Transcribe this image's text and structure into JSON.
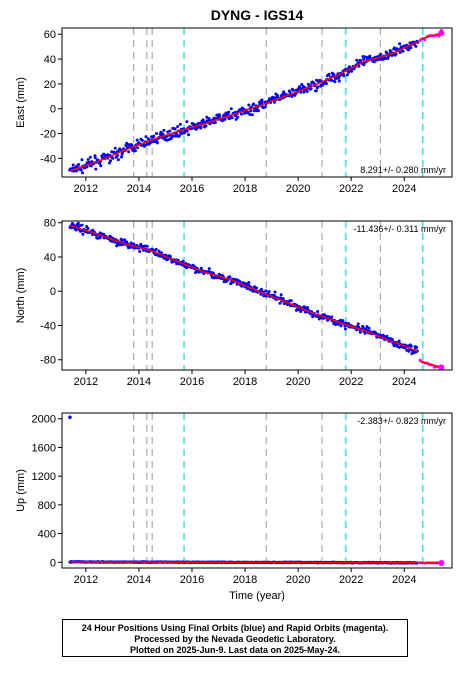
{
  "title": "DYNG - IGS14",
  "footer": {
    "line1": "24 Hour Positions Using Final Orbits (blue) and Rapid Orbits (magenta).",
    "line2": "Processed by the Nevada Geodetic Laboratory.",
    "line3": "Plotted on 2025-Jun-9. Last data on 2025-May-24."
  },
  "colors": {
    "final_points": "#0000ff",
    "rapid_points": "#ff00ff",
    "model_line": "#ff0000",
    "equipment_change": "#aaaaaa",
    "earthquake": "#00e5e5"
  },
  "chart_data": [
    {
      "type": "scatter",
      "ylabel": "East (mm)",
      "xlabel": "",
      "xlim": [
        2011.1,
        2025.8
      ],
      "ylim": [
        -55,
        65
      ],
      "yticks": [
        -40,
        -20,
        0,
        20,
        40,
        60
      ],
      "xticks": [
        2012,
        2014,
        2016,
        2018,
        2020,
        2022,
        2024
      ],
      "rate_label": "8.291+/- 0.280 mm/yr",
      "rate_position": "bottom-right",
      "series": [
        {
          "x": [
            2011.4,
            2012.5,
            2013.5,
            2014.5,
            2015.5,
            2016.5,
            2017.5,
            2018.5,
            2019.5,
            2020.5,
            2021.5,
            2022.5,
            2023.5,
            2024.5
          ],
          "y": [
            -50,
            -42,
            -33,
            -25,
            -18,
            -12,
            -5,
            2,
            10,
            18,
            27,
            38,
            44,
            54
          ]
        },
        {
          "x": [
            2024.6,
            2025.4
          ],
          "y": [
            56,
            61
          ]
        }
      ],
      "gray_dashed_x": [
        2013.8,
        2014.3,
        2014.5,
        2018.8,
        2020.9,
        2023.1
      ],
      "cyan_dashed_x": [
        2015.7,
        2021.8,
        2024.7
      ]
    },
    {
      "type": "scatter",
      "ylabel": "North (mm)",
      "xlabel": "",
      "xlim": [
        2011.1,
        2025.8
      ],
      "ylim": [
        -92,
        82
      ],
      "yticks": [
        -80,
        -40,
        0,
        40,
        80
      ],
      "xticks": [
        2012,
        2014,
        2016,
        2018,
        2020,
        2022,
        2024
      ],
      "rate_label": "-11.436+/- 0.311 mm/yr",
      "rate_position": "top-right",
      "series": [
        {
          "x": [
            2011.4,
            2012.5,
            2013.5,
            2014.5,
            2015.5,
            2016.5,
            2017.5,
            2018.5,
            2019.5,
            2020.5,
            2021.5,
            2022.5,
            2023.5,
            2024.5
          ],
          "y": [
            77,
            66,
            55,
            47,
            34,
            22,
            13,
            0,
            -12,
            -25,
            -36,
            -46,
            -58,
            -70
          ]
        },
        {
          "x": [
            2024.6,
            2025.4
          ],
          "y": [
            -82,
            -89
          ]
        }
      ],
      "gray_dashed_x": [
        2013.8,
        2014.3,
        2014.5,
        2018.8,
        2020.9,
        2023.1
      ],
      "cyan_dashed_x": [
        2015.7,
        2021.8,
        2024.7
      ]
    },
    {
      "type": "scatter",
      "ylabel": "Up (mm)",
      "xlabel": "Time (year)",
      "xlim": [
        2011.1,
        2025.8
      ],
      "ylim": [
        -80,
        2080
      ],
      "yticks": [
        0,
        400,
        800,
        1200,
        1600,
        2000
      ],
      "xticks": [
        2012,
        2014,
        2016,
        2018,
        2020,
        2022,
        2024
      ],
      "rate_label": "-2.383+/- 0.823 mm/yr",
      "rate_position": "top-right",
      "series": [
        {
          "x": [
            2011.4,
            2013.0,
            2015.0,
            2017.0,
            2019.0,
            2021.0,
            2023.0,
            2024.5
          ],
          "y": [
            5,
            3,
            2,
            0,
            -2,
            -4,
            -6,
            -8
          ]
        },
        {
          "x": [
            2024.6,
            2025.4
          ],
          "y": [
            -8,
            -10
          ]
        }
      ],
      "outliers": [
        {
          "x": 2011.4,
          "y": 2020
        }
      ],
      "gray_dashed_x": [
        2013.8,
        2014.3,
        2014.5,
        2018.8,
        2020.9,
        2023.1
      ],
      "cyan_dashed_x": [
        2015.7,
        2021.8,
        2024.7
      ]
    }
  ]
}
